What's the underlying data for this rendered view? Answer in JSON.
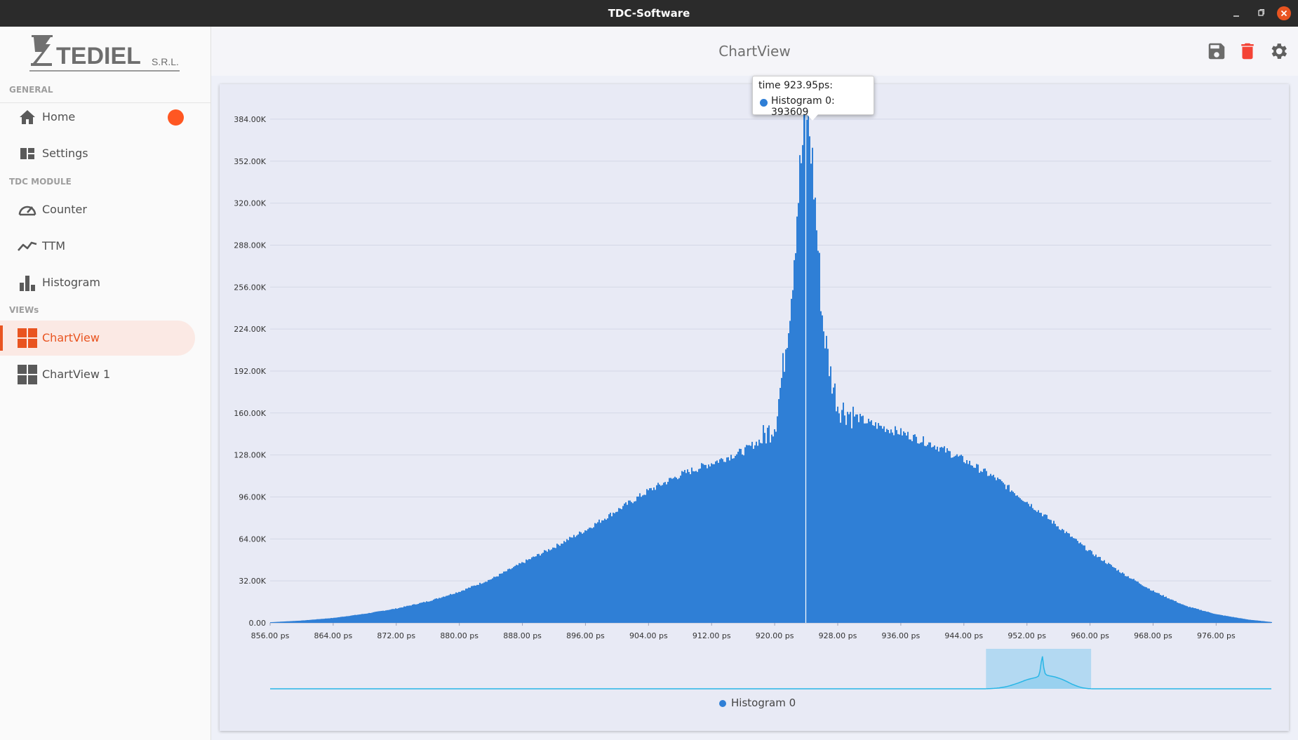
{
  "window": {
    "title": "TDC-Software"
  },
  "logo": {
    "text": "TEDIEL",
    "suffix": "S.R.L."
  },
  "sidebar": {
    "sections": [
      "GENERAL",
      "TDC MODULE",
      "VIEWs"
    ],
    "items": [
      {
        "label": "Home",
        "icon": "home-icon"
      },
      {
        "label": "Settings",
        "icon": "dashboard-icon"
      },
      {
        "label": "Counter",
        "icon": "speedometer-icon"
      },
      {
        "label": "TTM",
        "icon": "line-graph-icon"
      },
      {
        "label": "Histogram",
        "icon": "bar-chart-icon"
      },
      {
        "label": "ChartView",
        "icon": "grid-icon",
        "active": true
      },
      {
        "label": "ChartView 1",
        "icon": "grid-icon"
      }
    ]
  },
  "header": {
    "title": "ChartView",
    "actions": [
      "save-icon",
      "trash-icon",
      "gear-icon"
    ]
  },
  "colors": {
    "accent": "#e95420",
    "series": "#2f7fd6",
    "navigator": "#29b6e6",
    "delete": "#f44336"
  },
  "tooltip": {
    "line1": "time 923.95ps:",
    "line2": "Histogram 0: 393609"
  },
  "legend": {
    "label": "Histogram 0"
  },
  "chart_data": {
    "type": "bar",
    "series": [
      {
        "name": "Histogram 0",
        "points": [
          [
            856,
            500
          ],
          [
            860,
            1800
          ],
          [
            864,
            3800
          ],
          [
            868,
            7000
          ],
          [
            872,
            11000
          ],
          [
            876,
            16500
          ],
          [
            880,
            24000
          ],
          [
            884,
            33500
          ],
          [
            888,
            46000
          ],
          [
            892,
            58000
          ],
          [
            896,
            71000
          ],
          [
            900,
            86000
          ],
          [
            904,
            101000
          ],
          [
            908,
            113000
          ],
          [
            912,
            122000
          ],
          [
            916,
            131000
          ],
          [
            918,
            139000
          ],
          [
            919,
            145000
          ],
          [
            920,
            152000
          ],
          [
            921,
            195000
          ],
          [
            922,
            250000
          ],
          [
            923,
            335000
          ],
          [
            923.95,
            393609
          ],
          [
            924.5,
            365000
          ],
          [
            925,
            325000
          ],
          [
            926,
            230000
          ],
          [
            927,
            190000
          ],
          [
            928,
            165000
          ],
          [
            930,
            158000
          ],
          [
            932,
            152000
          ],
          [
            936,
            145000
          ],
          [
            940,
            136000
          ],
          [
            944,
            124000
          ],
          [
            948,
            110000
          ],
          [
            952,
            92000
          ],
          [
            956,
            73000
          ],
          [
            960,
            54000
          ],
          [
            964,
            38000
          ],
          [
            968,
            24000
          ],
          [
            972,
            13000
          ],
          [
            976,
            6500
          ],
          [
            980,
            2500
          ],
          [
            983,
            600
          ]
        ]
      }
    ],
    "xlim": [
      856,
      983
    ],
    "ylim": [
      0,
      400000
    ],
    "x_ticks": [
      "856.00 ps",
      "864.00 ps",
      "872.00 ps",
      "880.00 ps",
      "888.00 ps",
      "896.00 ps",
      "904.00 ps",
      "912.00 ps",
      "920.00 ps",
      "928.00 ps",
      "936.00 ps",
      "944.00 ps",
      "952.00 ps",
      "960.00 ps",
      "968.00 ps",
      "976.00 ps"
    ],
    "x_tick_values": [
      856,
      864,
      872,
      880,
      888,
      896,
      904,
      912,
      920,
      928,
      936,
      944,
      952,
      960,
      968,
      976
    ],
    "y_ticks": [
      "0.00",
      "32.00K",
      "64.00K",
      "96.00K",
      "128.00K",
      "160.00K",
      "192.00K",
      "224.00K",
      "256.00K",
      "288.00K",
      "320.00K",
      "352.00K",
      "384.00K"
    ],
    "y_tick_values": [
      0,
      32000,
      64000,
      96000,
      128000,
      160000,
      192000,
      224000,
      256000,
      288000,
      320000,
      352000,
      384000
    ],
    "crosshair_x": 923.95,
    "grid": true,
    "legend_position": "bottom-center",
    "navigator": {
      "selected_fraction": [
        0.715,
        0.82
      ]
    }
  }
}
